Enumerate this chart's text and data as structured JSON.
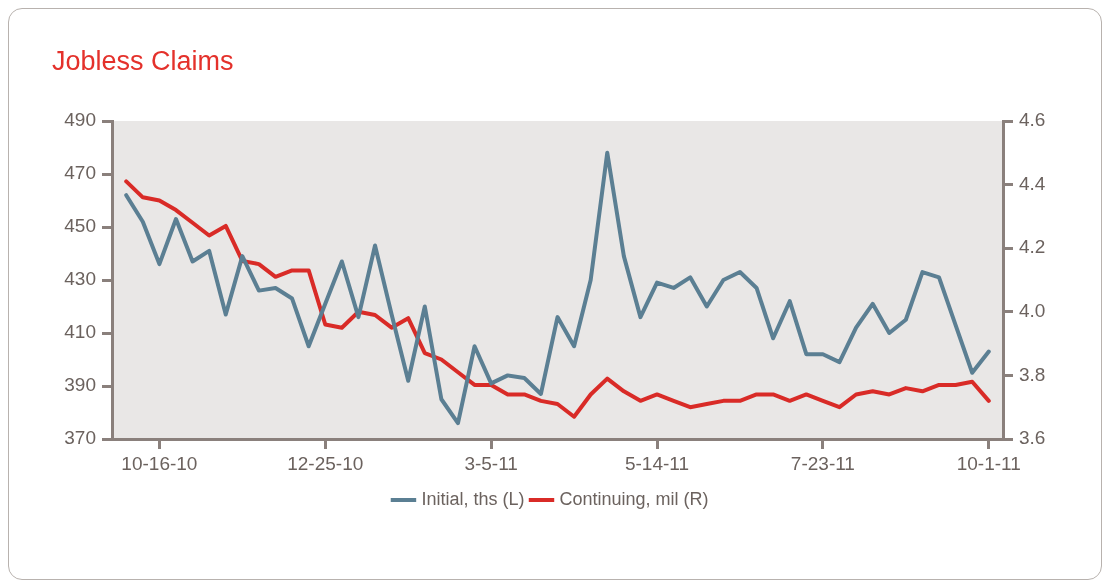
{
  "chart_data": {
    "type": "line",
    "title": "Jobless Claims",
    "x": [
      "2010-10-02",
      "2010-10-09",
      "2010-10-16",
      "2010-10-23",
      "2010-10-30",
      "2010-11-06",
      "2010-11-13",
      "2010-11-20",
      "2010-11-27",
      "2010-12-04",
      "2010-12-11",
      "2010-12-18",
      "2010-12-25",
      "2011-01-01",
      "2011-01-08",
      "2011-01-15",
      "2011-01-22",
      "2011-01-29",
      "2011-02-05",
      "2011-02-12",
      "2011-02-19",
      "2011-02-26",
      "2011-03-05",
      "2011-03-12",
      "2011-03-19",
      "2011-03-26",
      "2011-04-02",
      "2011-04-09",
      "2011-04-16",
      "2011-04-23",
      "2011-04-30",
      "2011-05-07",
      "2011-05-14",
      "2011-05-21",
      "2011-05-28",
      "2011-06-04",
      "2011-06-11",
      "2011-06-18",
      "2011-06-25",
      "2011-07-02",
      "2011-07-09",
      "2011-07-16",
      "2011-07-23",
      "2011-07-30",
      "2011-08-06",
      "2011-08-13",
      "2011-08-20",
      "2011-08-27",
      "2011-09-03",
      "2011-09-10",
      "2011-09-17",
      "2011-09-24",
      "2011-10-01"
    ],
    "series": [
      {
        "name": "Initial, ths (L)",
        "color": "#5b7f93",
        "values": [
          462,
          452,
          436,
          453,
          437,
          441,
          417,
          439,
          426,
          427,
          423,
          405,
          421,
          437,
          416,
          443,
          417,
          392,
          420,
          385,
          376,
          405,
          391,
          394,
          393,
          387,
          416,
          405,
          430,
          478,
          439,
          416,
          429,
          427,
          431,
          420,
          430,
          433,
          427,
          408,
          422,
          402,
          402,
          399,
          412,
          421,
          410,
          415,
          433,
          431,
          413,
          395,
          403
        ]
      },
      {
        "name": "Continuing, mil (R)",
        "color": "#d92b27",
        "axis": "y2",
        "values": [
          4.41,
          4.36,
          4.35,
          4.32,
          4.28,
          4.24,
          4.27,
          4.16,
          4.15,
          4.11,
          4.13,
          4.13,
          3.96,
          3.95,
          4.0,
          3.99,
          3.95,
          3.98,
          3.87,
          3.85,
          3.81,
          3.77,
          3.77,
          3.74,
          3.74,
          3.72,
          3.71,
          3.67,
          3.74,
          3.79,
          3.75,
          3.72,
          3.74,
          3.72,
          3.7,
          3.71,
          3.72,
          3.72,
          3.74,
          3.74,
          3.72,
          3.74,
          3.72,
          3.7,
          3.74,
          3.75,
          3.74,
          3.76,
          3.75,
          3.77,
          3.77,
          3.78,
          3.72
        ]
      }
    ],
    "xlim": [
      "2010-09-26",
      "2011-10-07"
    ],
    "xticks": [
      {
        "value": "2010-10-16",
        "label": "10-16-10"
      },
      {
        "value": "2010-12-25",
        "label": "12-25-10"
      },
      {
        "value": "2011-03-05",
        "label": "3-5-11"
      },
      {
        "value": "2011-05-14",
        "label": "5-14-11"
      },
      {
        "value": "2011-07-23",
        "label": "7-23-11"
      },
      {
        "value": "2011-10-01",
        "label": "10-1-11"
      }
    ],
    "ylim": [
      370,
      490
    ],
    "yticks": [
      370,
      390,
      410,
      430,
      450,
      470,
      490
    ],
    "y2lim": [
      3.6,
      4.6
    ],
    "y2ticks": [
      3.6,
      3.8,
      {
        "value": 4,
        "label": "4.0"
      },
      4.2,
      4.4,
      4.6
    ],
    "grid": false,
    "legend": "bottom",
    "marker": "none",
    "line_style": "solid"
  }
}
